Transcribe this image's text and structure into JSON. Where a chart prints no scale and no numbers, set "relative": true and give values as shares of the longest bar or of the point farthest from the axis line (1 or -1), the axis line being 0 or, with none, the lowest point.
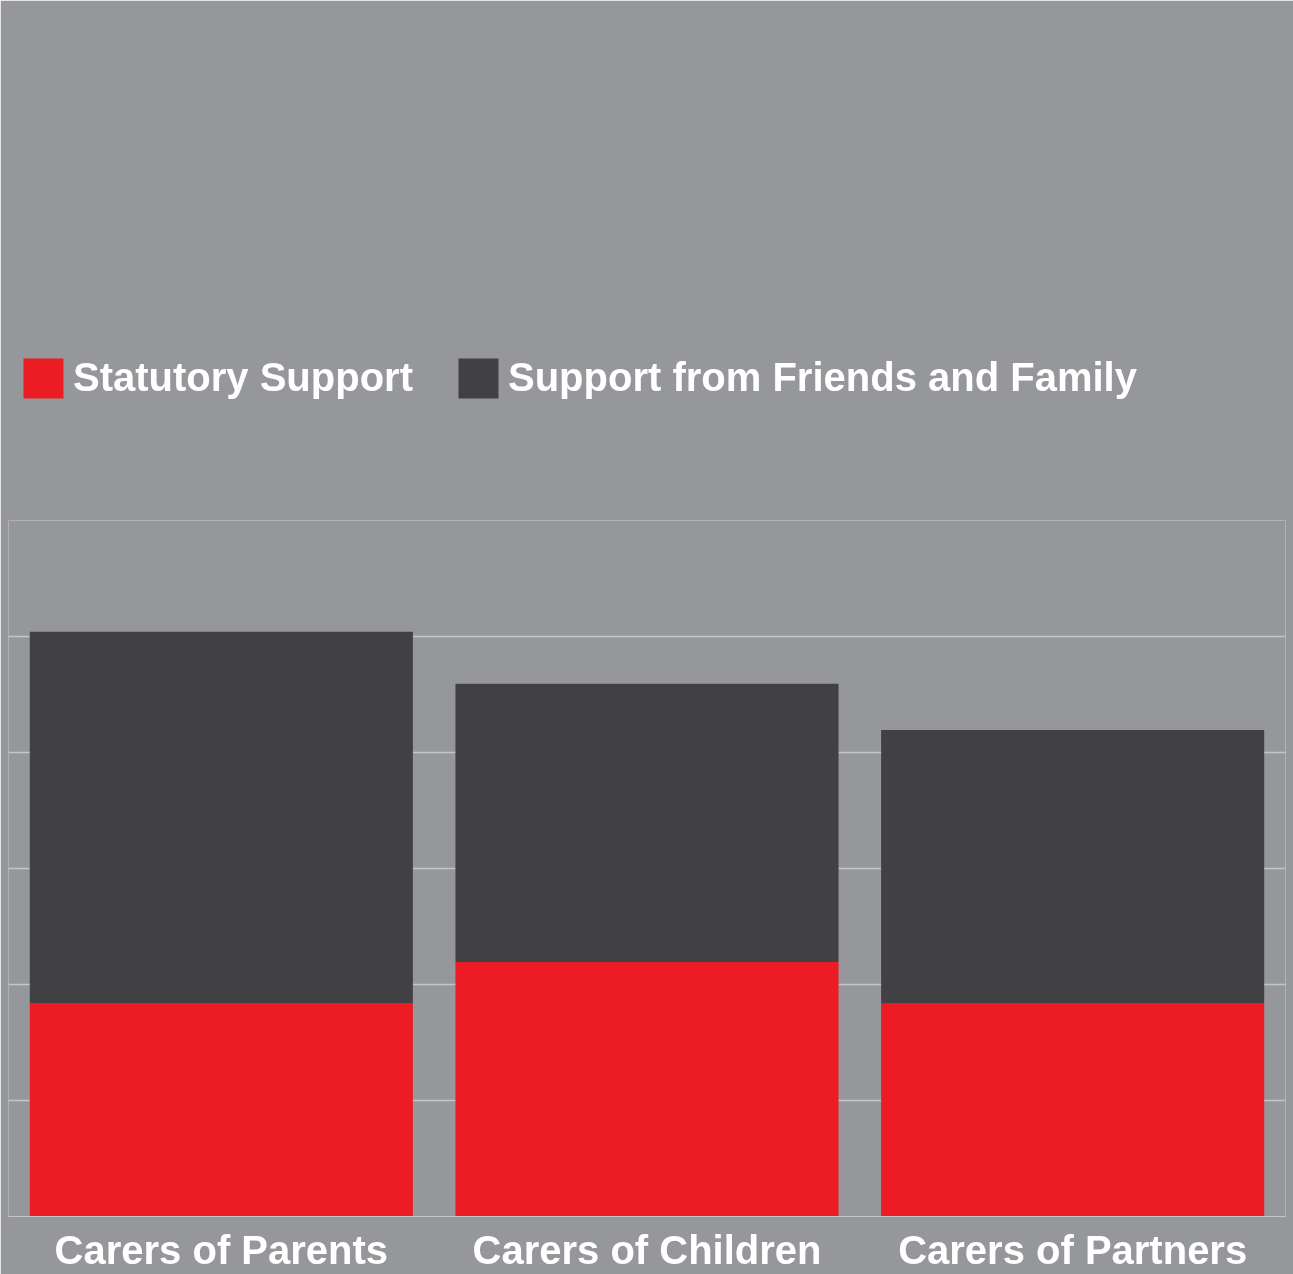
{
  "chart_data": {
    "type": "bar",
    "stacked": true,
    "relative": true,
    "categories": [
      "Carers of Parents",
      "Carers of Children",
      "Carers of Partners"
    ],
    "series": [
      {
        "name": "Statutory Support",
        "color": "#ec1c24",
        "values": [
          0.365,
          0.435,
          0.365
        ]
      },
      {
        "name": "Support from Friends and Family",
        "color": "#414143",
        "values": [
          0.635,
          0.476,
          0.467
        ]
      }
    ],
    "legend": "top left",
    "grid": "y"
  }
}
